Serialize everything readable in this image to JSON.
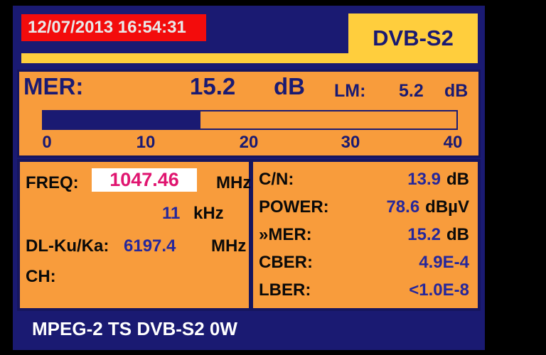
{
  "header": {
    "datetime": "12/07/2013 16:54:31",
    "standard": "DVB-S2"
  },
  "mer_panel": {
    "label": "MER:",
    "value": "15.2",
    "unit": "dB",
    "lm_label": "LM:",
    "lm_value": "5.2",
    "lm_unit": "dB",
    "bar": {
      "min": 0,
      "max": 40,
      "value": 15.2,
      "percent": 38,
      "ticks": [
        "0",
        "10",
        "20",
        "30",
        "40"
      ]
    }
  },
  "tuning_panel": {
    "freq_label": "FREQ:",
    "freq_value": "1047.46",
    "freq_unit": "MHz",
    "offset_value": "11",
    "offset_unit": "kHz",
    "dl_label": "DL-Ku/Ka:",
    "dl_value": "6197.4",
    "dl_unit": "MHz",
    "ch_label": "CH:",
    "ch_value": ""
  },
  "measurements_panel": {
    "rows": [
      {
        "label": "C/N:",
        "value": "13.9",
        "unit": "dB"
      },
      {
        "label": "POWER:",
        "value": "78.6",
        "unit": "dBµV"
      },
      {
        "label": "»MER:",
        "value": "15.2",
        "unit": "dB"
      },
      {
        "label": "CBER:",
        "value": "4.9E-4",
        "unit": ""
      },
      {
        "label": "LBER:",
        "value": "<1.0E-8",
        "unit": ""
      }
    ]
  },
  "footer": {
    "status": "MPEG-2 TS DVB-S2 0W"
  },
  "colors": {
    "background": "#000000",
    "screen_navy": "#1a1a72",
    "panel_orange": "#f89c3c",
    "tab_yellow": "#ffce3d",
    "date_red": "#f30c0c",
    "freq_magenta": "#e01570",
    "value_blue": "#26279b",
    "label_black": "#0a0a0a"
  }
}
